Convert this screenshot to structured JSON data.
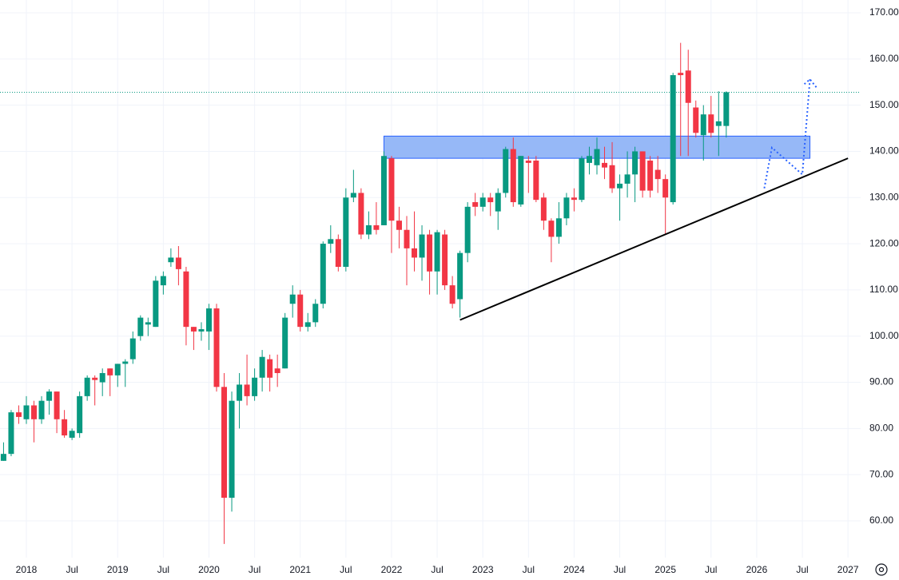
{
  "chart_data": {
    "type": "candlestick",
    "x": [
      "2017-10",
      "2017-11",
      "2017-12",
      "2018-01",
      "2018-02",
      "2018-03",
      "2018-04",
      "2018-05",
      "2018-06",
      "2018-07",
      "2018-08",
      "2018-09",
      "2018-10",
      "2018-11",
      "2018-12",
      "2019-01",
      "2019-02",
      "2019-03",
      "2019-04",
      "2019-05",
      "2019-06",
      "2019-07",
      "2019-08",
      "2019-09",
      "2019-10",
      "2019-11",
      "2019-12",
      "2020-01",
      "2020-02",
      "2020-03",
      "2020-04",
      "2020-05",
      "2020-06",
      "2020-07",
      "2020-08",
      "2020-09",
      "2020-10",
      "2020-11",
      "2020-12",
      "2021-01",
      "2021-02",
      "2021-03",
      "2021-04",
      "2021-05",
      "2021-06",
      "2021-07",
      "2021-08",
      "2021-09",
      "2021-10",
      "2021-11",
      "2021-12",
      "2022-01",
      "2022-02",
      "2022-03",
      "2022-04",
      "2022-05",
      "2022-06",
      "2022-07",
      "2022-08",
      "2022-09",
      "2022-10",
      "2022-11",
      "2022-12",
      "2023-01",
      "2023-02",
      "2023-03",
      "2023-04",
      "2023-05",
      "2023-06",
      "2023-07",
      "2023-08",
      "2023-09",
      "2023-10",
      "2023-11",
      "2023-12",
      "2024-01",
      "2024-02",
      "2024-03",
      "2024-04",
      "2024-05",
      "2024-06",
      "2024-07",
      "2024-08",
      "2024-09",
      "2024-10",
      "2024-11",
      "2024-12",
      "2025-01",
      "2025-02",
      "2025-03",
      "2025-04",
      "2025-05",
      "2025-06",
      "2025-07",
      "2025-08",
      "2025-09"
    ],
    "open": [
      73,
      74.5,
      83.5,
      82,
      85,
      82,
      86,
      88,
      82,
      78,
      79,
      87,
      91,
      90,
      93,
      91.5,
      94,
      95,
      100,
      102.5,
      102,
      111,
      116,
      117,
      114,
      102,
      101,
      101,
      106,
      89,
      65,
      86,
      89.5,
      87,
      91,
      95,
      93,
      93,
      107,
      109,
      102,
      103,
      107,
      120,
      121,
      115,
      130,
      131,
      122,
      124,
      124,
      138.5,
      125,
      123,
      119,
      117,
      122,
      114,
      122,
      111,
      108,
      118,
      129,
      128,
      130,
      127,
      131,
      140.5,
      128.5,
      138,
      138,
      130,
      125,
      121.5,
      125.5,
      130,
      129.5,
      137.5,
      137,
      137.5,
      137,
      132,
      133,
      135,
      140,
      138,
      136,
      134,
      129,
      157,
      157.5,
      149.5,
      143.5,
      148,
      145.5,
      145.5
    ],
    "high": [
      77,
      84,
      85,
      87,
      86,
      87,
      88.5,
      88,
      84,
      80,
      88,
      91.5,
      91.5,
      93,
      93,
      94,
      95,
      101,
      104.5,
      104,
      113,
      114,
      119,
      119.5,
      115,
      102,
      103,
      107,
      107,
      92,
      88,
      92,
      96,
      93,
      97,
      96,
      96,
      105,
      111,
      110,
      105,
      108,
      120.5,
      124,
      122,
      132,
      136,
      132,
      127,
      129,
      140,
      139,
      128,
      126,
      127,
      124,
      123,
      123,
      123,
      113,
      118.5,
      129,
      131,
      131,
      131,
      132,
      141,
      143,
      139,
      139,
      139,
      131,
      125.5,
      129,
      131,
      132,
      139,
      141,
      143,
      141,
      142,
      135,
      140,
      141,
      140,
      139,
      139,
      135,
      157,
      163.5,
      162,
      151,
      150,
      152,
      153,
      153
    ],
    "low": [
      73,
      74,
      81,
      81,
      77,
      81,
      83,
      79,
      78,
      77.5,
      78,
      86,
      85,
      87,
      87,
      89,
      89,
      94,
      99,
      100,
      102,
      109,
      115,
      111,
      98,
      97,
      99,
      97,
      88,
      55,
      62,
      80,
      85,
      86,
      88,
      88,
      89,
      93,
      104,
      101,
      101,
      102,
      106,
      118,
      114,
      114,
      129,
      121,
      121,
      122,
      124,
      118,
      119,
      111,
      114,
      112,
      109,
      109,
      110,
      106,
      104,
      116,
      126,
      127,
      126,
      123,
      130,
      128,
      128,
      131,
      129,
      123,
      116,
      120,
      124,
      127,
      129,
      135,
      135,
      134,
      131,
      125,
      130,
      129,
      130,
      130,
      131,
      122,
      128.5,
      139,
      139,
      143,
      138,
      143,
      139,
      143
    ],
    "close": [
      74.5,
      83.5,
      82.5,
      85,
      82,
      86,
      88,
      82,
      78.5,
      79.5,
      87,
      91,
      90.5,
      92,
      91.5,
      94,
      94.5,
      99.5,
      104,
      103,
      112,
      113,
      117,
      114.5,
      102,
      101,
      101.5,
      106,
      89,
      65,
      86,
      89.5,
      87,
      91,
      95.5,
      91,
      92,
      104,
      109,
      102,
      103,
      107,
      120,
      121,
      115,
      130,
      131,
      122,
      124,
      123,
      139,
      125,
      123,
      119,
      117,
      122,
      114,
      122.5,
      111,
      107,
      118,
      128,
      128,
      130,
      129,
      131,
      140.5,
      129,
      139,
      137.5,
      129.5,
      125,
      121.5,
      125.5,
      130,
      129.5,
      138.5,
      139,
      140.5,
      136.5,
      132,
      133,
      135,
      140,
      131.5,
      131.5,
      134,
      130,
      156.5,
      156.5,
      150.5,
      144,
      148,
      144,
      146.5,
      152.8
    ],
    "up_color": "#089981",
    "down_color": "#f23645",
    "ylim": [
      54,
      172
    ],
    "yticks": [
      {
        "value": 60,
        "label": "60.00"
      },
      {
        "value": 70,
        "label": "70.00"
      },
      {
        "value": 80,
        "label": "80.00"
      },
      {
        "value": 90,
        "label": "90.00"
      },
      {
        "value": 100,
        "label": "100.00"
      },
      {
        "value": 110,
        "label": "110.00"
      },
      {
        "value": 120,
        "label": "120.00"
      },
      {
        "value": 130,
        "label": "130.00"
      },
      {
        "value": 140,
        "label": "140.00"
      },
      {
        "value": 150,
        "label": "150.00"
      },
      {
        "value": 160,
        "label": "160.00"
      },
      {
        "value": 170,
        "label": "170.00"
      }
    ],
    "xticks": [
      {
        "value": "2018-01",
        "label": "2018"
      },
      {
        "value": "2018-07",
        "label": "Jul"
      },
      {
        "value": "2019-01",
        "label": "2019"
      },
      {
        "value": "2019-07",
        "label": "Jul"
      },
      {
        "value": "2020-01",
        "label": "2020"
      },
      {
        "value": "2020-07",
        "label": "Jul"
      },
      {
        "value": "2021-01",
        "label": "2021"
      },
      {
        "value": "2021-07",
        "label": "Jul"
      },
      {
        "value": "2022-01",
        "label": "2022"
      },
      {
        "value": "2022-07",
        "label": "Jul"
      },
      {
        "value": "2023-01",
        "label": "2023"
      },
      {
        "value": "2023-07",
        "label": "Jul"
      },
      {
        "value": "2024-01",
        "label": "2024"
      },
      {
        "value": "2024-07",
        "label": "Jul"
      },
      {
        "value": "2025-01",
        "label": "2025"
      },
      {
        "value": "2025-07",
        "label": "Jul"
      },
      {
        "value": "2026-01",
        "label": "2026"
      },
      {
        "value": "2026-07",
        "label": "Jul"
      },
      {
        "value": "2027-01",
        "label": "2027"
      }
    ],
    "grid": true,
    "zone": {
      "from": "2021-12",
      "to": "2026-08",
      "low": 138.5,
      "high": 143.3,
      "color": "#90b4f7"
    },
    "trendline": {
      "x": [
        "2022-10",
        "2027-01"
      ],
      "y": [
        103.5,
        138.5
      ]
    },
    "projection": {
      "x": [
        "2026-02",
        "2026-03",
        "2026-07",
        "2026-08"
      ],
      "y": [
        132,
        140.8,
        135,
        155.6
      ],
      "color": "#2962ff"
    }
  }
}
